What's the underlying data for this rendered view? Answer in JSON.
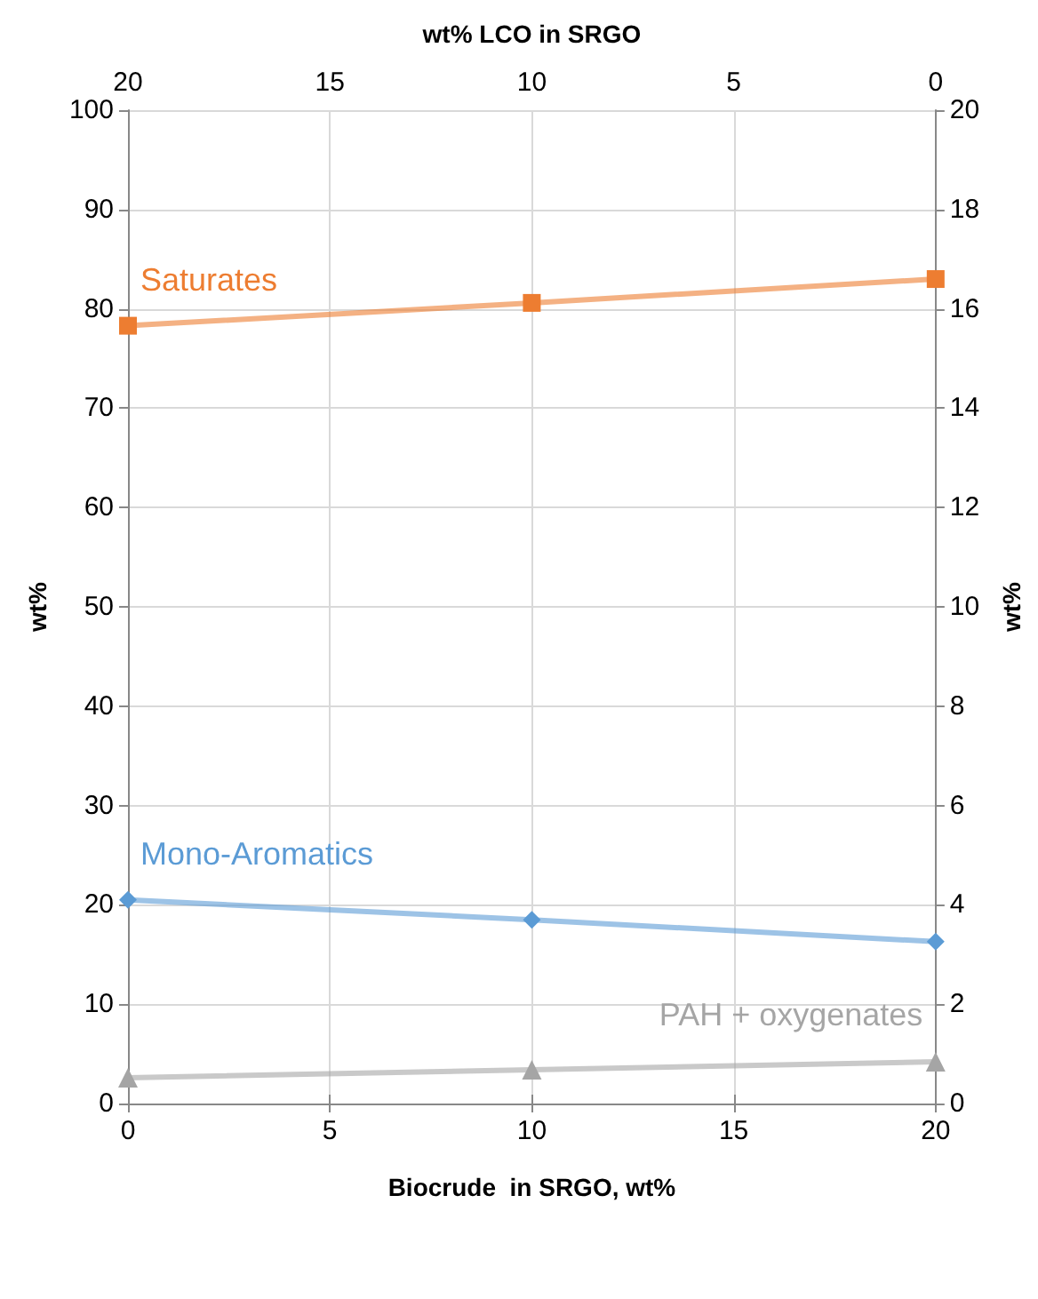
{
  "chart_data": {
    "type": "line",
    "xlabel": "Biocrude  in SRGO, wt%",
    "ylabel": "wt%",
    "y2label": "wt%",
    "x2label": "wt% LCO in SRGO",
    "x": [
      0,
      10,
      20
    ],
    "xlim": [
      0,
      20
    ],
    "xticks": [
      0,
      5,
      10,
      15,
      20
    ],
    "x2lim": [
      20,
      0
    ],
    "x2ticks": [
      20,
      15,
      10,
      5,
      0
    ],
    "ylim": [
      0,
      100
    ],
    "yticks": [
      0,
      10,
      20,
      30,
      40,
      50,
      60,
      70,
      80,
      90,
      100
    ],
    "y2lim": [
      0,
      20
    ],
    "y2ticks": [
      0,
      2,
      4,
      6,
      8,
      10,
      12,
      14,
      16,
      18,
      20
    ],
    "grid": true,
    "legend": false,
    "series": [
      {
        "name": "Saturates",
        "color": "#ed7d31",
        "marker": "square",
        "values": [
          78.3,
          80.6,
          83.0
        ]
      },
      {
        "name": "Mono-Aromatics",
        "color": "#5b9bd5",
        "marker": "diamond",
        "values": [
          20.5,
          18.5,
          16.3
        ]
      },
      {
        "name": "PAH + oxygenates",
        "color": "#a5a5a5",
        "marker": "triangle",
        "values": [
          2.6,
          3.4,
          4.2
        ]
      }
    ]
  }
}
